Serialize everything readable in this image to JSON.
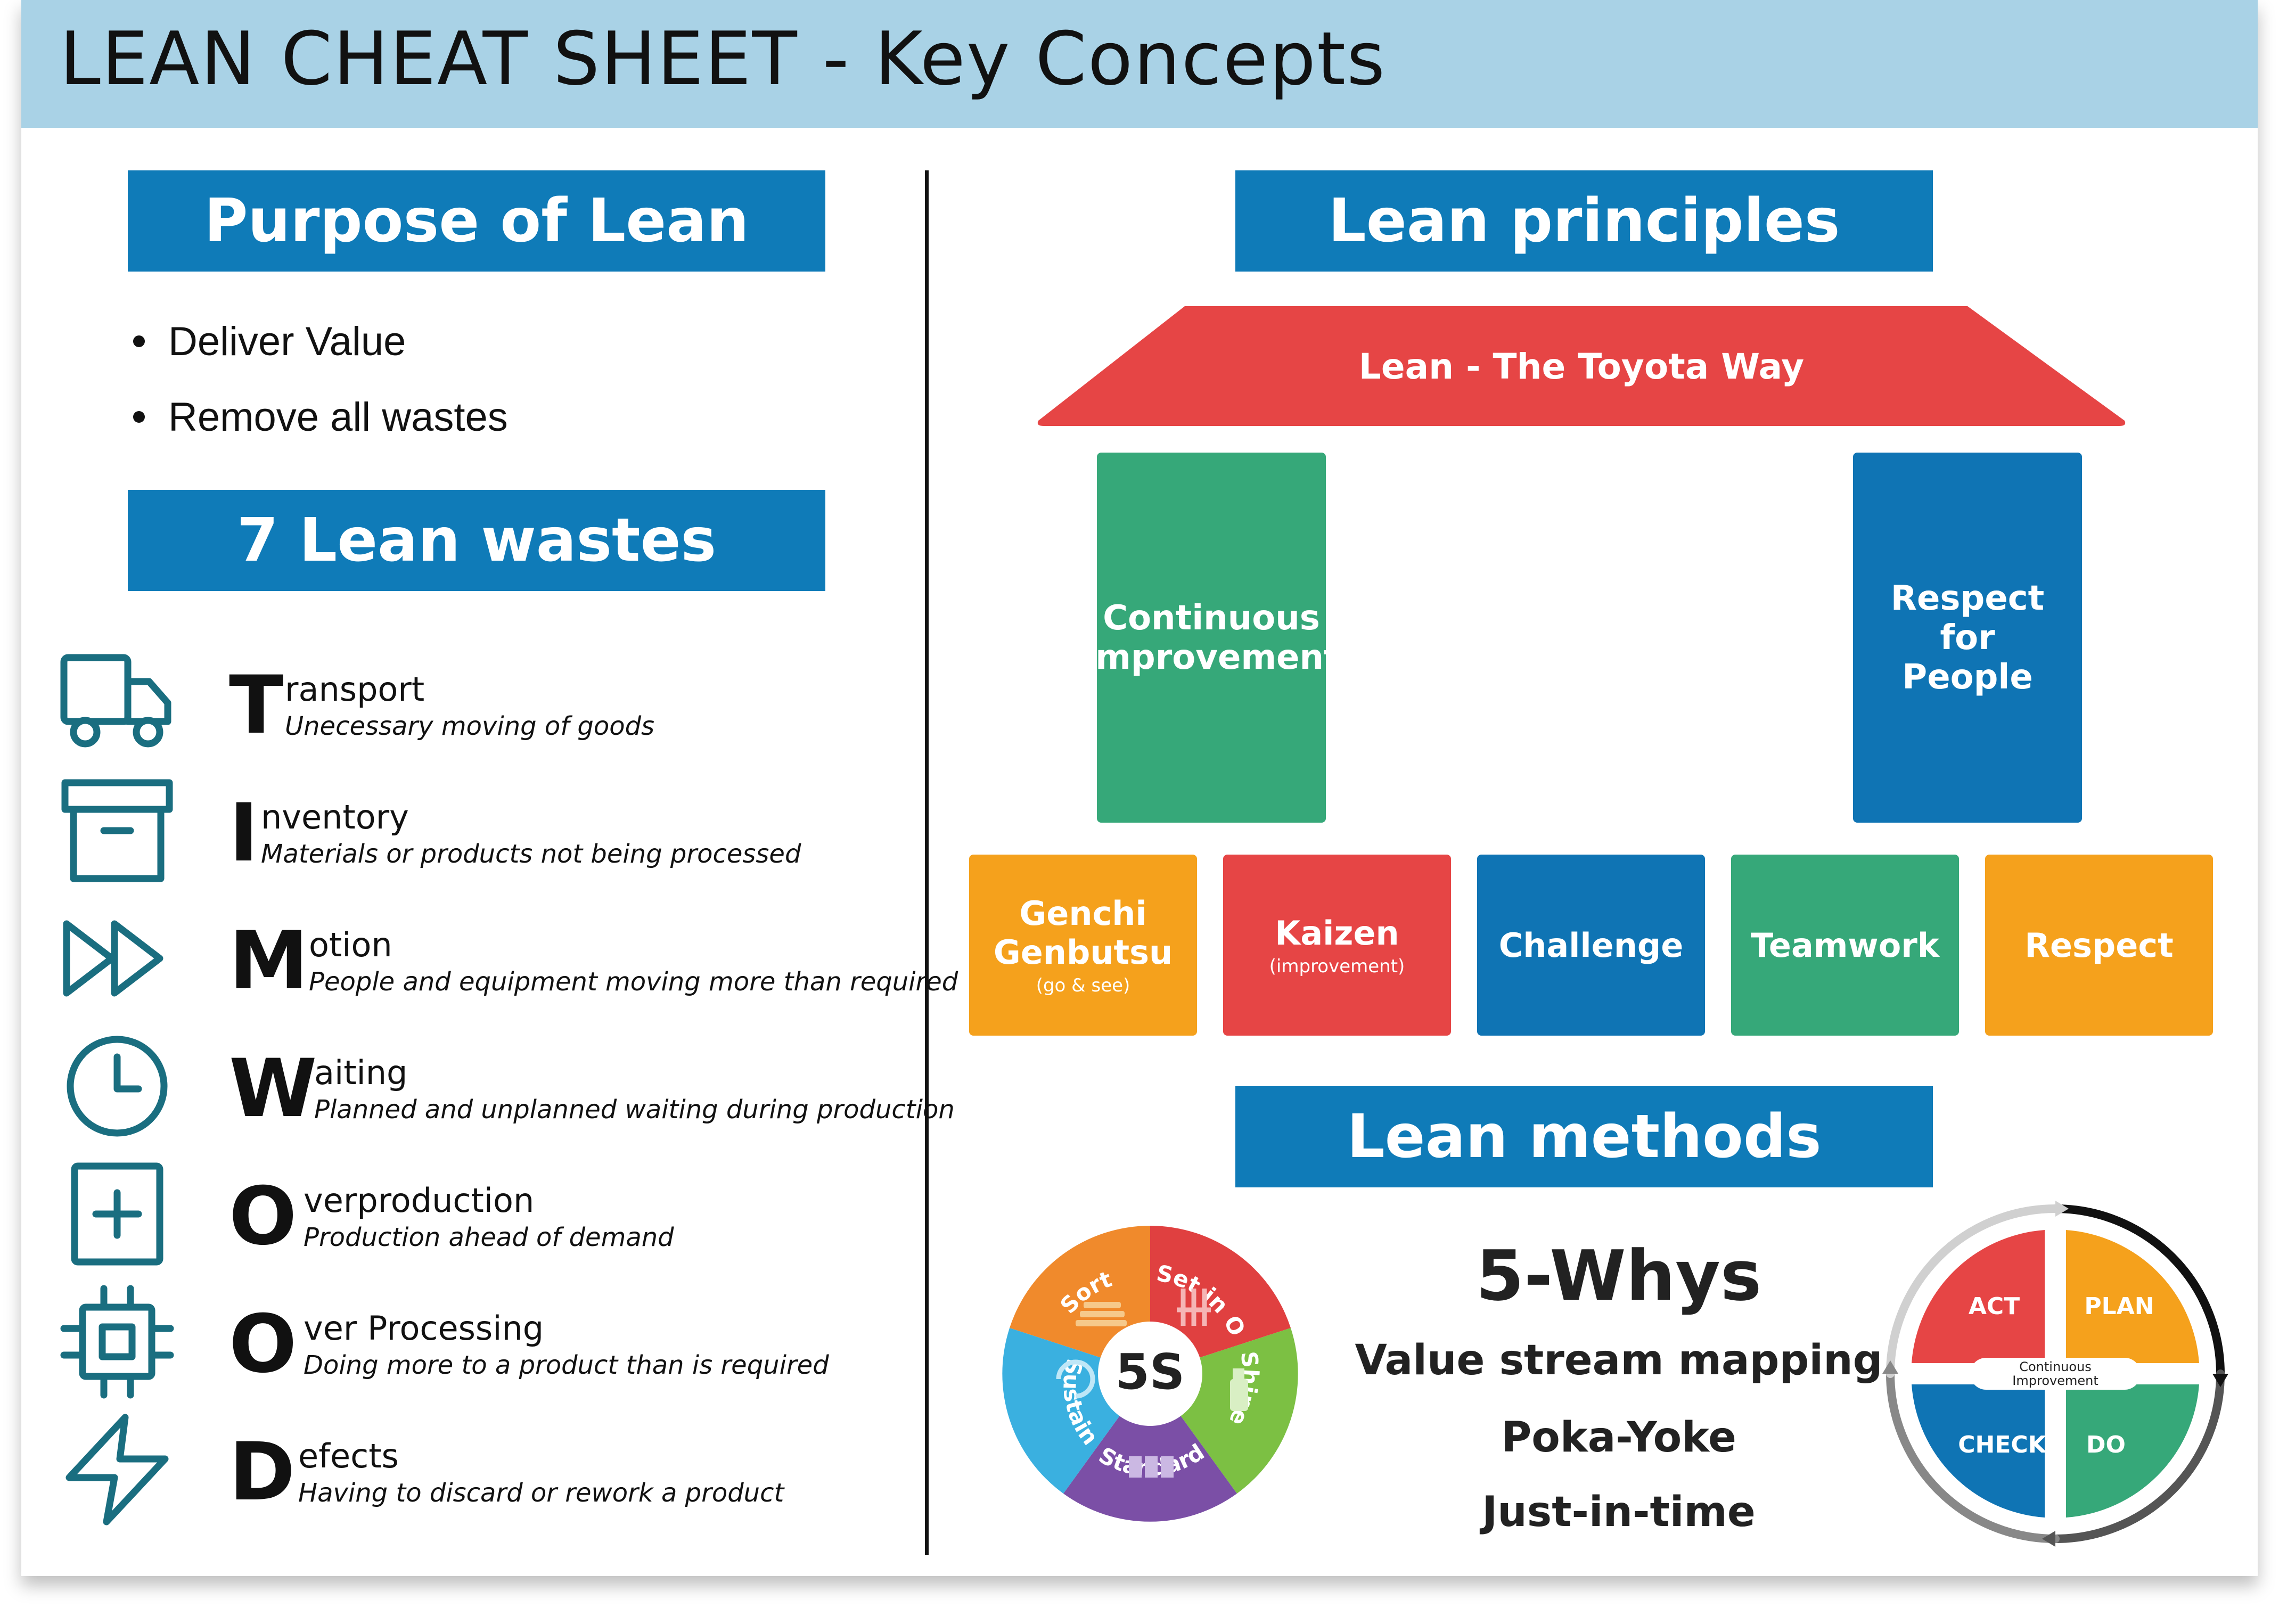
{
  "title": "LEAN CHEAT SHEET - Key Concepts",
  "purpose": {
    "heading": "Purpose of Lean",
    "items": [
      "Deliver Value",
      "Remove all wastes"
    ]
  },
  "wastes": {
    "heading": "7 Lean wastes",
    "items": [
      {
        "letter": "T",
        "rest": "ransport",
        "desc": "Unecessary moving of goods",
        "icon": "truck-icon"
      },
      {
        "letter": "I",
        "rest": "nventory",
        "desc": "Materials or products not being processed",
        "icon": "archive-box-icon"
      },
      {
        "letter": "M",
        "rest": "otion",
        "desc": "People and equipment moving more than required",
        "icon": "fast-forward-icon"
      },
      {
        "letter": "W",
        "rest": "aiting",
        "desc": "Planned and unplanned waiting during production",
        "icon": "clock-icon"
      },
      {
        "letter": "O",
        "rest": "verproduction",
        "desc": "Production ahead of demand",
        "icon": "plus-square-icon"
      },
      {
        "letter": "O",
        "rest": "ver Processing",
        "desc": "Doing more to a product than is required",
        "icon": "cpu-chip-icon"
      },
      {
        "letter": "D",
        "rest": "efects",
        "desc": "Having to discard or rework a product",
        "icon": "lightning-icon"
      }
    ]
  },
  "principles": {
    "heading": "Lean principles",
    "roof": "Lean - The Toyota Way",
    "pillars": [
      "Continuous Improvement",
      "Respect for People"
    ],
    "foundation": [
      {
        "label": "Genchi Genbutsu",
        "sub": "(go & see)",
        "color": "#f5a11c"
      },
      {
        "label": "Kaizen",
        "sub": "(improvement)",
        "color": "#e64545"
      },
      {
        "label": "Challenge",
        "sub": "",
        "color": "#0f74b4"
      },
      {
        "label": "Teamwork",
        "sub": "",
        "color": "#36a879"
      },
      {
        "label": "Respect",
        "sub": "",
        "color": "#f5a11c"
      }
    ]
  },
  "methods": {
    "heading": "Lean methods",
    "five_s": {
      "center": "5S",
      "segments": [
        "Sort",
        "Set in Order",
        "Shine",
        "Standardize",
        "Sustain"
      ]
    },
    "list": [
      "5-Whys",
      "Value stream mapping",
      "Poka-Yoke",
      "Just-in-time"
    ],
    "pdca": {
      "quadrants": [
        "ACT",
        "PLAN",
        "CHECK",
        "DO"
      ],
      "center": "Continuous Improvement"
    }
  },
  "colors": {
    "header_blue": "#0f7bb8",
    "topbar": "#a9d2e6",
    "roof_red": "#e64545",
    "green": "#36a879",
    "blue": "#0f74b4",
    "orange": "#f5a11c",
    "icon_teal": "#1a6e80"
  }
}
